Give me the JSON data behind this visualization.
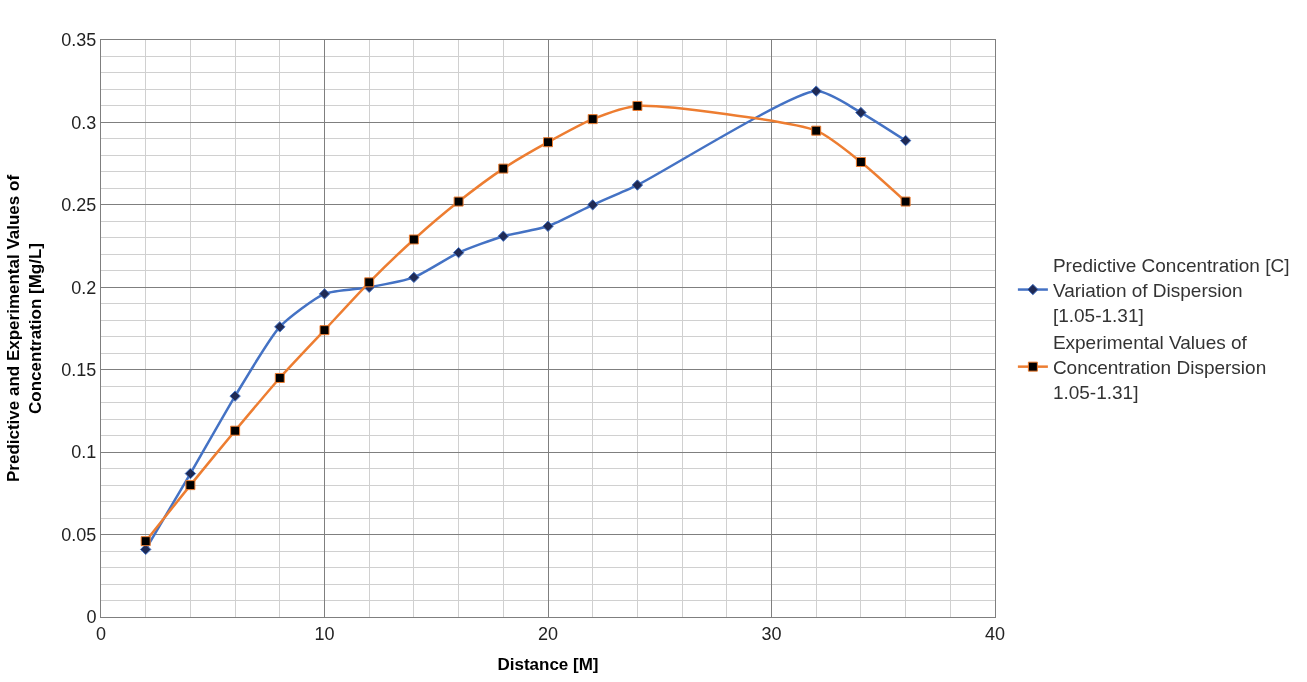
{
  "chart_data": {
    "type": "line",
    "xlabel": "Distance [M]",
    "ylabel": "Predictive and Experimental Values of Concentration [Mg/L]",
    "x": [
      2,
      4,
      6,
      8,
      10,
      12,
      14,
      16,
      18,
      20,
      22,
      24,
      32,
      34,
      36
    ],
    "series": [
      {
        "name": "Predictive Concentration [C] Variation of Dispersion [1.05-1.31]",
        "color": "#4472c4",
        "marker": "diamond",
        "values": [
          0.041,
          0.087,
          0.134,
          0.176,
          0.196,
          0.2,
          0.206,
          0.221,
          0.231,
          0.237,
          0.25,
          0.262,
          0.319,
          0.306,
          0.289
        ]
      },
      {
        "name": "Experimental Values of Concentration Dispersion 1.05-1.31]",
        "color": "#ed7d31",
        "marker": "square",
        "values": [
          0.046,
          0.08,
          0.113,
          0.145,
          0.174,
          0.203,
          0.229,
          0.252,
          0.272,
          0.288,
          0.302,
          0.31,
          0.295,
          0.276,
          0.252
        ]
      }
    ],
    "xlim": [
      0,
      40
    ],
    "xticks": [
      0,
      10,
      20,
      30,
      40
    ],
    "ylim": [
      0,
      0.35
    ],
    "yticks": [
      0,
      0.05,
      0.1,
      0.15,
      0.2,
      0.25,
      0.3,
      0.35
    ],
    "grid": true,
    "legend": "right"
  }
}
